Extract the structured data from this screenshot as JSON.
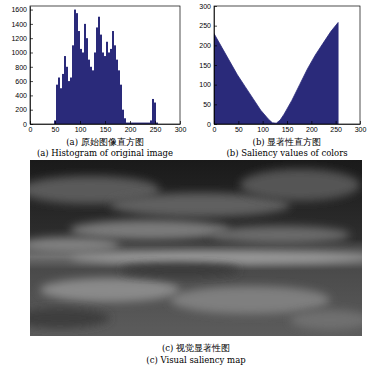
{
  "chart_data": [
    {
      "type": "histogram",
      "title": "(a) 原始图像直方图",
      "subtitle": "(a) Histogram of original image",
      "bins": [
        0,
        4,
        8,
        12,
        16,
        20,
        24,
        28,
        32,
        36,
        40,
        44,
        48,
        52,
        56,
        60,
        64,
        68,
        72,
        76,
        80,
        84,
        88,
        92,
        96,
        100,
        104,
        108,
        112,
        116,
        120,
        124,
        128,
        132,
        136,
        140,
        144,
        148,
        152,
        156,
        160,
        164,
        168,
        172,
        176,
        180,
        184,
        188,
        192,
        196,
        200,
        204,
        208,
        212,
        216,
        220,
        224,
        228,
        232,
        236,
        240,
        244,
        248,
        252,
        256
      ],
      "values": [
        0,
        0,
        0,
        0,
        0,
        0,
        0,
        0,
        0,
        0,
        0,
        0,
        50,
        550,
        650,
        500,
        700,
        950,
        800,
        600,
        650,
        1100,
        1600,
        1550,
        1300,
        1050,
        1000,
        1400,
        1200,
        900,
        800,
        750,
        1000,
        1350,
        1500,
        1250,
        1000,
        950,
        1150,
        1000,
        1050,
        1300,
        1100,
        900,
        750,
        550,
        200,
        80,
        20,
        20,
        20,
        20,
        20,
        20,
        20,
        20,
        20,
        20,
        20,
        20,
        50,
        350,
        300,
        20
      ],
      "color": "#2a2a7a",
      "xlim": [
        0,
        300
      ],
      "xticks": [
        0,
        50,
        100,
        150,
        200,
        250,
        300
      ],
      "ylim": [
        0,
        1650
      ],
      "yticks": [
        0,
        200,
        400,
        600,
        800,
        1000,
        1200,
        1400,
        1600
      ]
    },
    {
      "type": "area",
      "title": "(b) 显著性直方图",
      "subtitle": "(b) Saliency values of colors",
      "x": [
        0,
        16,
        32,
        48,
        64,
        80,
        96,
        112,
        120,
        128,
        136,
        144,
        160,
        176,
        192,
        208,
        224,
        240,
        255
      ],
      "values": [
        230,
        195,
        160,
        125,
        95,
        65,
        35,
        12,
        3,
        2,
        10,
        25,
        60,
        100,
        140,
        175,
        205,
        235,
        258
      ],
      "color": "#2a2a7a",
      "xlim": [
        0,
        300
      ],
      "xticks": [
        0,
        50,
        100,
        150,
        200,
        250,
        300
      ],
      "ylim": [
        0,
        300
      ],
      "yticks": [
        0,
        50,
        100,
        150,
        200,
        250,
        300
      ]
    }
  ],
  "figure_c": {
    "title": "(c) 视觉显著性图",
    "subtitle": "(c) Visual saliency map"
  }
}
